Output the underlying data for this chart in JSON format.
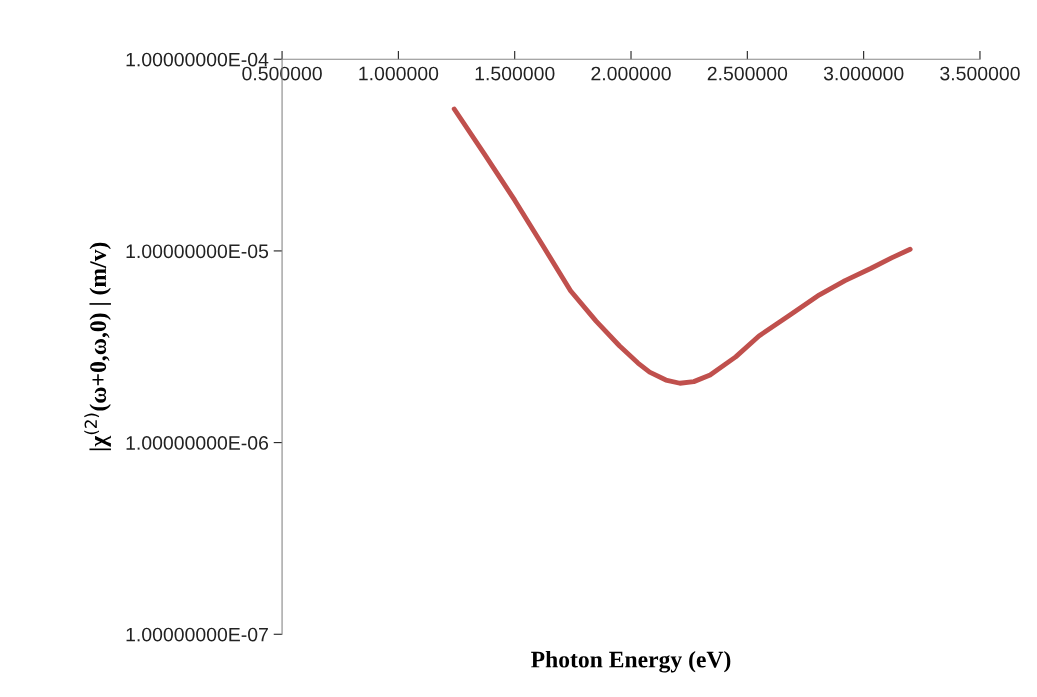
{
  "chart_data": {
    "type": "line",
    "xlabel": "Photon Energy (eV)",
    "ylabel": "|χ$^{(2)}$(ω+0,ω,0) | (m/v)",
    "log": "y",
    "grid": false,
    "marker": "none",
    "line_style": "solid",
    "xlim": [
      0.5,
      3.5
    ],
    "xticks": [
      {
        "value": 0.5,
        "label": "0.500000"
      },
      {
        "value": 1.0,
        "label": "1.000000"
      },
      {
        "value": 1.5,
        "label": "1.500000"
      },
      {
        "value": 2.0,
        "label": "2.000000"
      },
      {
        "value": 2.5,
        "label": "2.500000"
      },
      {
        "value": 3.0,
        "label": "3.000000"
      },
      {
        "value": 3.5,
        "label": "3.500000"
      }
    ],
    "ylim": [
      1e-07,
      0.0001
    ],
    "yticks": [
      {
        "value": 1e-07,
        "label": "1.00000000E-07"
      },
      {
        "value": 1e-06,
        "label": "1.00000000E-06"
      },
      {
        "value": 1e-05,
        "label": "1.00000000E-05"
      },
      {
        "value": 0.0001,
        "label": "1.00000000E-04"
      }
    ],
    "series": [
      {
        "color": "#c0504d",
        "x": [
          1.24,
          1.37,
          1.5,
          1.62,
          1.74,
          1.85,
          1.95,
          2.03,
          2.08,
          2.15,
          2.21,
          2.27,
          2.34,
          2.45,
          2.55,
          2.68,
          2.81,
          2.92,
          3.03,
          3.12,
          3.2
        ],
        "values": [
          5.5e-05,
          3.2e-05,
          1.84e-05,
          1.07e-05,
          6.2e-06,
          4.3e-06,
          3.2e-06,
          2.6e-06,
          2.33e-06,
          2.12e-06,
          2.04e-06,
          2.08e-06,
          2.25e-06,
          2.8e-06,
          3.6e-06,
          4.6e-06,
          5.9e-06,
          7e-06,
          8.1e-06,
          9.2e-06,
          1.02e-05
        ]
      }
    ]
  }
}
